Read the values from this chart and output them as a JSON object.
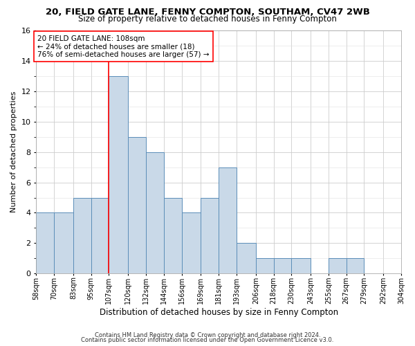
{
  "title1": "20, FIELD GATE LANE, FENNY COMPTON, SOUTHAM, CV47 2WB",
  "title2": "Size of property relative to detached houses in Fenny Compton",
  "xlabel": "Distribution of detached houses by size in Fenny Compton",
  "ylabel": "Number of detached properties",
  "footnote1": "Contains HM Land Registry data © Crown copyright and database right 2024.",
  "footnote2": "Contains public sector information licensed under the Open Government Licence v3.0.",
  "annotation_line1": "20 FIELD GATE LANE: 108sqm",
  "annotation_line2": "← 24% of detached houses are smaller (18)",
  "annotation_line3": "76% of semi-detached houses are larger (57) →",
  "bar_color": "#c9d9e8",
  "bar_edge_color": "#5b8db8",
  "red_line_x": 107,
  "bins": [
    58,
    70,
    83,
    95,
    107,
    120,
    132,
    144,
    156,
    169,
    181,
    193,
    206,
    218,
    230,
    243,
    255,
    267,
    279,
    292,
    304
  ],
  "values": [
    4,
    4,
    5,
    5,
    13,
    9,
    8,
    5,
    4,
    5,
    7,
    2,
    1,
    1,
    1,
    0,
    1,
    1,
    0,
    0
  ],
  "ylim": [
    0,
    16
  ],
  "yticks": [
    0,
    2,
    4,
    6,
    8,
    10,
    12,
    14,
    16
  ],
  "title1_fontsize": 9.5,
  "title2_fontsize": 8.5,
  "xlabel_fontsize": 8.5,
  "ylabel_fontsize": 8,
  "xtick_fontsize": 7,
  "ytick_fontsize": 8,
  "footnote_fontsize": 6,
  "annotation_fontsize": 7.5
}
